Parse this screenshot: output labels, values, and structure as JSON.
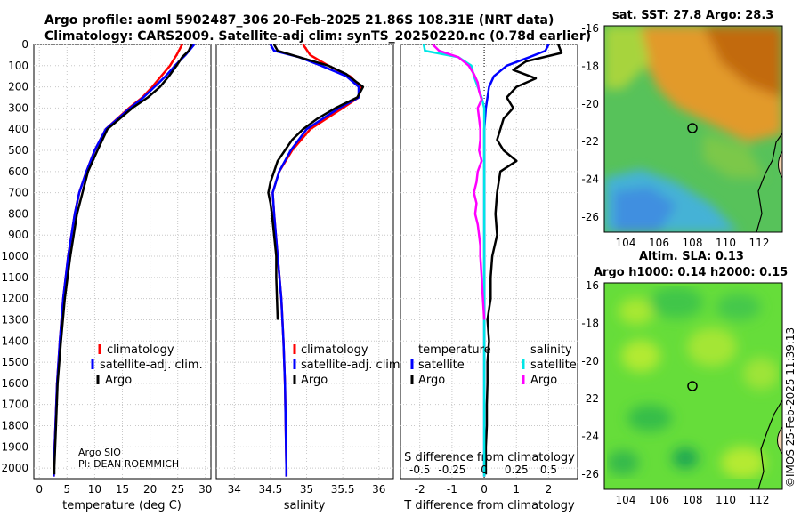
{
  "titles": {
    "line1": "Argo profile: aoml 5902487_306 20-Feb-2025 21.86S 108.31E (NRT data)",
    "line2": "Climatology: CARS2009. Satellite-adj clim: synTS_20250220.nc (0.78d earlier)"
  },
  "maps": {
    "sst_title": "sat. SST: 27.8 Argo: 28.3",
    "sla_title1": "Altim. SLA: 0.13",
    "sla_title2": "Argo h1000: 0.14 h2000: 0.15",
    "lat_ticks": [
      "-16",
      "-18",
      "-20",
      "-22",
      "-24",
      "-26"
    ],
    "lon_ticks": [
      "104",
      "106",
      "108",
      "110",
      "112"
    ],
    "argo_position": {
      "lon": 108.31,
      "lat": -21.86
    },
    "colors": {
      "sst_warm": "#d98a1f",
      "sst_mid": "#57c25a",
      "sst_cool": "#49b7d8",
      "sla_green": "#66dd3a",
      "land": "#f3d3b0"
    }
  },
  "credits": {
    "line1": "Argo SIO",
    "line2": "PI: DEAN ROEMMICH",
    "stamp": "©IMOS 25-Feb-2025 11:39:13"
  },
  "chart_data": [
    {
      "type": "line",
      "id": "temperature",
      "xlabel": "temperature (deg C)",
      "ylabel": "",
      "xlim": [
        -1,
        31
      ],
      "ylim": [
        2050,
        0
      ],
      "xticks": [
        "0",
        "5",
        "10",
        "15",
        "20",
        "25",
        "30"
      ],
      "yticks": [
        "0",
        "100",
        "200",
        "300",
        "400",
        "500",
        "600",
        "700",
        "800",
        "900",
        "1000",
        "1100",
        "1200",
        "1300",
        "1400",
        "1500",
        "1600",
        "1700",
        "1800",
        "1900",
        "2000"
      ],
      "legend": [
        "climatology",
        "satellite-adj. clim.",
        "Argo"
      ],
      "legend_placement": "lower-right",
      "series": [
        {
          "name": "climatology",
          "color": "#ff0000",
          "depth": [
            0,
            50,
            100,
            150,
            200,
            250,
            300,
            400,
            500,
            600,
            700,
            800,
            1000,
            1200,
            1400,
            1600,
            1800,
            2000,
            2040
          ],
          "values": [
            25.8,
            24.8,
            23.6,
            22.0,
            20.4,
            18.6,
            16.2,
            12.0,
            10.0,
            8.5,
            7.2,
            6.4,
            5.2,
            4.3,
            3.7,
            3.2,
            2.9,
            2.6,
            2.6
          ]
        },
        {
          "name": "satellite-adj. clim.",
          "color": "#0000ff",
          "depth": [
            0,
            50,
            100,
            150,
            200,
            250,
            300,
            400,
            500,
            600,
            700,
            800,
            1000,
            1200,
            1400,
            1600,
            1800,
            2000,
            2040
          ],
          "values": [
            28.0,
            26.4,
            24.5,
            22.8,
            20.8,
            18.8,
            16.4,
            12.0,
            10.0,
            8.5,
            7.2,
            6.4,
            5.2,
            4.3,
            3.7,
            3.2,
            2.9,
            2.6,
            2.6
          ]
        },
        {
          "name": "Argo",
          "color": "#000000",
          "depth": [
            0,
            30,
            60,
            100,
            150,
            200,
            250,
            300,
            400,
            500,
            600,
            700,
            800,
            900,
            1000,
            1200,
            1400,
            1600,
            1800,
            2000,
            2030
          ],
          "values": [
            27.5,
            27.0,
            25.8,
            24.8,
            23.4,
            21.8,
            19.6,
            16.8,
            12.3,
            10.5,
            8.8,
            7.8,
            6.8,
            6.2,
            5.6,
            4.6,
            3.9,
            3.3,
            3.0,
            2.7,
            2.7
          ]
        }
      ]
    },
    {
      "type": "line",
      "id": "salinity",
      "xlabel": "salinity",
      "xlim": [
        33.75,
        36.2
      ],
      "ylim": [
        2050,
        0
      ],
      "xticks": [
        "34",
        "34.5",
        "35",
        "35.5",
        "36"
      ],
      "legend": [
        "climatology",
        "satellite-adj. clim.",
        "Argo"
      ],
      "legend_placement": "lower-right",
      "series": [
        {
          "name": "climatology",
          "color": "#ff0000",
          "depth": [
            0,
            50,
            100,
            150,
            200,
            250,
            300,
            400,
            500,
            600,
            700,
            800,
            1000,
            1200,
            1400,
            1600,
            1800,
            2000,
            2040
          ],
          "values": [
            34.95,
            35.05,
            35.3,
            35.6,
            35.75,
            35.72,
            35.5,
            35.05,
            34.8,
            34.62,
            34.53,
            34.55,
            34.6,
            34.65,
            34.68,
            34.7,
            34.71,
            34.72,
            34.72
          ]
        },
        {
          "name": "satellite-adj. clim.",
          "color": "#0000ff",
          "depth": [
            0,
            30,
            60,
            100,
            150,
            200,
            250,
            300,
            400,
            500,
            600,
            700,
            800,
            1000,
            1200,
            1400,
            1600,
            1800,
            2000,
            2040
          ],
          "values": [
            34.5,
            34.55,
            34.9,
            35.2,
            35.55,
            35.72,
            35.72,
            35.45,
            35.0,
            34.78,
            34.62,
            34.53,
            34.55,
            34.6,
            34.65,
            34.68,
            34.7,
            34.71,
            34.72,
            34.72
          ]
        },
        {
          "name": "Argo",
          "color": "#000000",
          "depth": [
            0,
            30,
            60,
            100,
            140,
            180,
            200,
            250,
            300,
            350,
            400,
            450,
            500,
            550,
            600,
            650,
            700,
            750,
            800,
            900,
            1000,
            1100,
            1200,
            1300
          ],
          "values": [
            34.55,
            34.6,
            34.9,
            35.3,
            35.55,
            35.7,
            35.78,
            35.7,
            35.4,
            35.15,
            34.95,
            34.8,
            34.7,
            34.6,
            34.55,
            34.5,
            34.47,
            34.5,
            34.52,
            34.55,
            34.58,
            34.58,
            34.59,
            34.6
          ]
        }
      ]
    },
    {
      "type": "line",
      "id": "difference",
      "xlabel": "T difference from climatology",
      "top_xlabel": "S difference from climatology",
      "xlim": [
        -2.6,
        2.9
      ],
      "ylim": [
        2050,
        0
      ],
      "xticks": [
        "-2",
        "-1",
        "0",
        "1",
        "2"
      ],
      "top_xticks": [
        "-0.5",
        "-0.25",
        "0",
        "0.25",
        "0.5"
      ],
      "legend_temperature_header": "temperature",
      "legend_salinity_header": "salinity",
      "legend_temperature": [
        "satellite",
        "Argo"
      ],
      "legend_salinity": [
        "satellite",
        "Argo"
      ],
      "series": [
        {
          "name": "temperature satellite",
          "color": "#0000ff",
          "depth": [
            0,
            30,
            60,
            100,
            150,
            200,
            300,
            400,
            500,
            600,
            800,
            1000,
            1300,
            1600,
            2000,
            2040
          ],
          "values": [
            2.0,
            1.9,
            1.4,
            0.7,
            0.3,
            0.15,
            0.05,
            0.0,
            0.0,
            0.0,
            0.0,
            0.0,
            0.0,
            0.0,
            0.0,
            0.0
          ]
        },
        {
          "name": "temperature Argo",
          "color": "#000000",
          "depth": [
            0,
            40,
            80,
            120,
            160,
            200,
            250,
            300,
            350,
            400,
            450,
            500,
            550,
            600,
            700,
            800,
            900,
            1000,
            1100,
            1200,
            1300,
            1400,
            1500,
            1600,
            1700,
            1800,
            1900,
            2000,
            2030
          ],
          "values": [
            2.3,
            2.4,
            1.3,
            0.9,
            1.6,
            1.0,
            0.7,
            0.9,
            0.6,
            0.5,
            0.4,
            0.6,
            1.0,
            0.5,
            0.4,
            0.35,
            0.4,
            0.25,
            0.2,
            0.2,
            0.1,
            0.15,
            0.1,
            0.1,
            0.08,
            0.08,
            0.05,
            0.05,
            0.05
          ]
        },
        {
          "name": "salinity satellite",
          "color": "#00e6e6",
          "depth": [
            0,
            30,
            60,
            100,
            150,
            200,
            250,
            300,
            400,
            500,
            600,
            800,
            1000,
            1300,
            1600,
            2000,
            2040
          ],
          "values": [
            -0.47,
            -0.46,
            -0.2,
            -0.1,
            -0.08,
            -0.05,
            -0.02,
            0.0,
            0.0,
            0.0,
            0.0,
            0.0,
            0.0,
            0.0,
            0.0,
            0.0,
            0.0
          ]
        },
        {
          "name": "salinity Argo",
          "color": "#ff00ff",
          "depth": [
            0,
            30,
            60,
            100,
            140,
            180,
            220,
            260,
            300,
            350,
            400,
            450,
            500,
            550,
            600,
            650,
            700,
            750,
            800,
            850,
            900,
            950,
            1000,
            1100,
            1200,
            1300
          ],
          "values": [
            -0.4,
            -0.35,
            -0.2,
            -0.12,
            -0.08,
            -0.05,
            -0.04,
            -0.02,
            -0.05,
            -0.04,
            -0.03,
            -0.03,
            -0.04,
            -0.02,
            -0.05,
            -0.06,
            -0.08,
            -0.06,
            -0.07,
            -0.05,
            -0.04,
            -0.03,
            -0.03,
            -0.02,
            -0.01,
            0.0
          ]
        }
      ]
    }
  ]
}
